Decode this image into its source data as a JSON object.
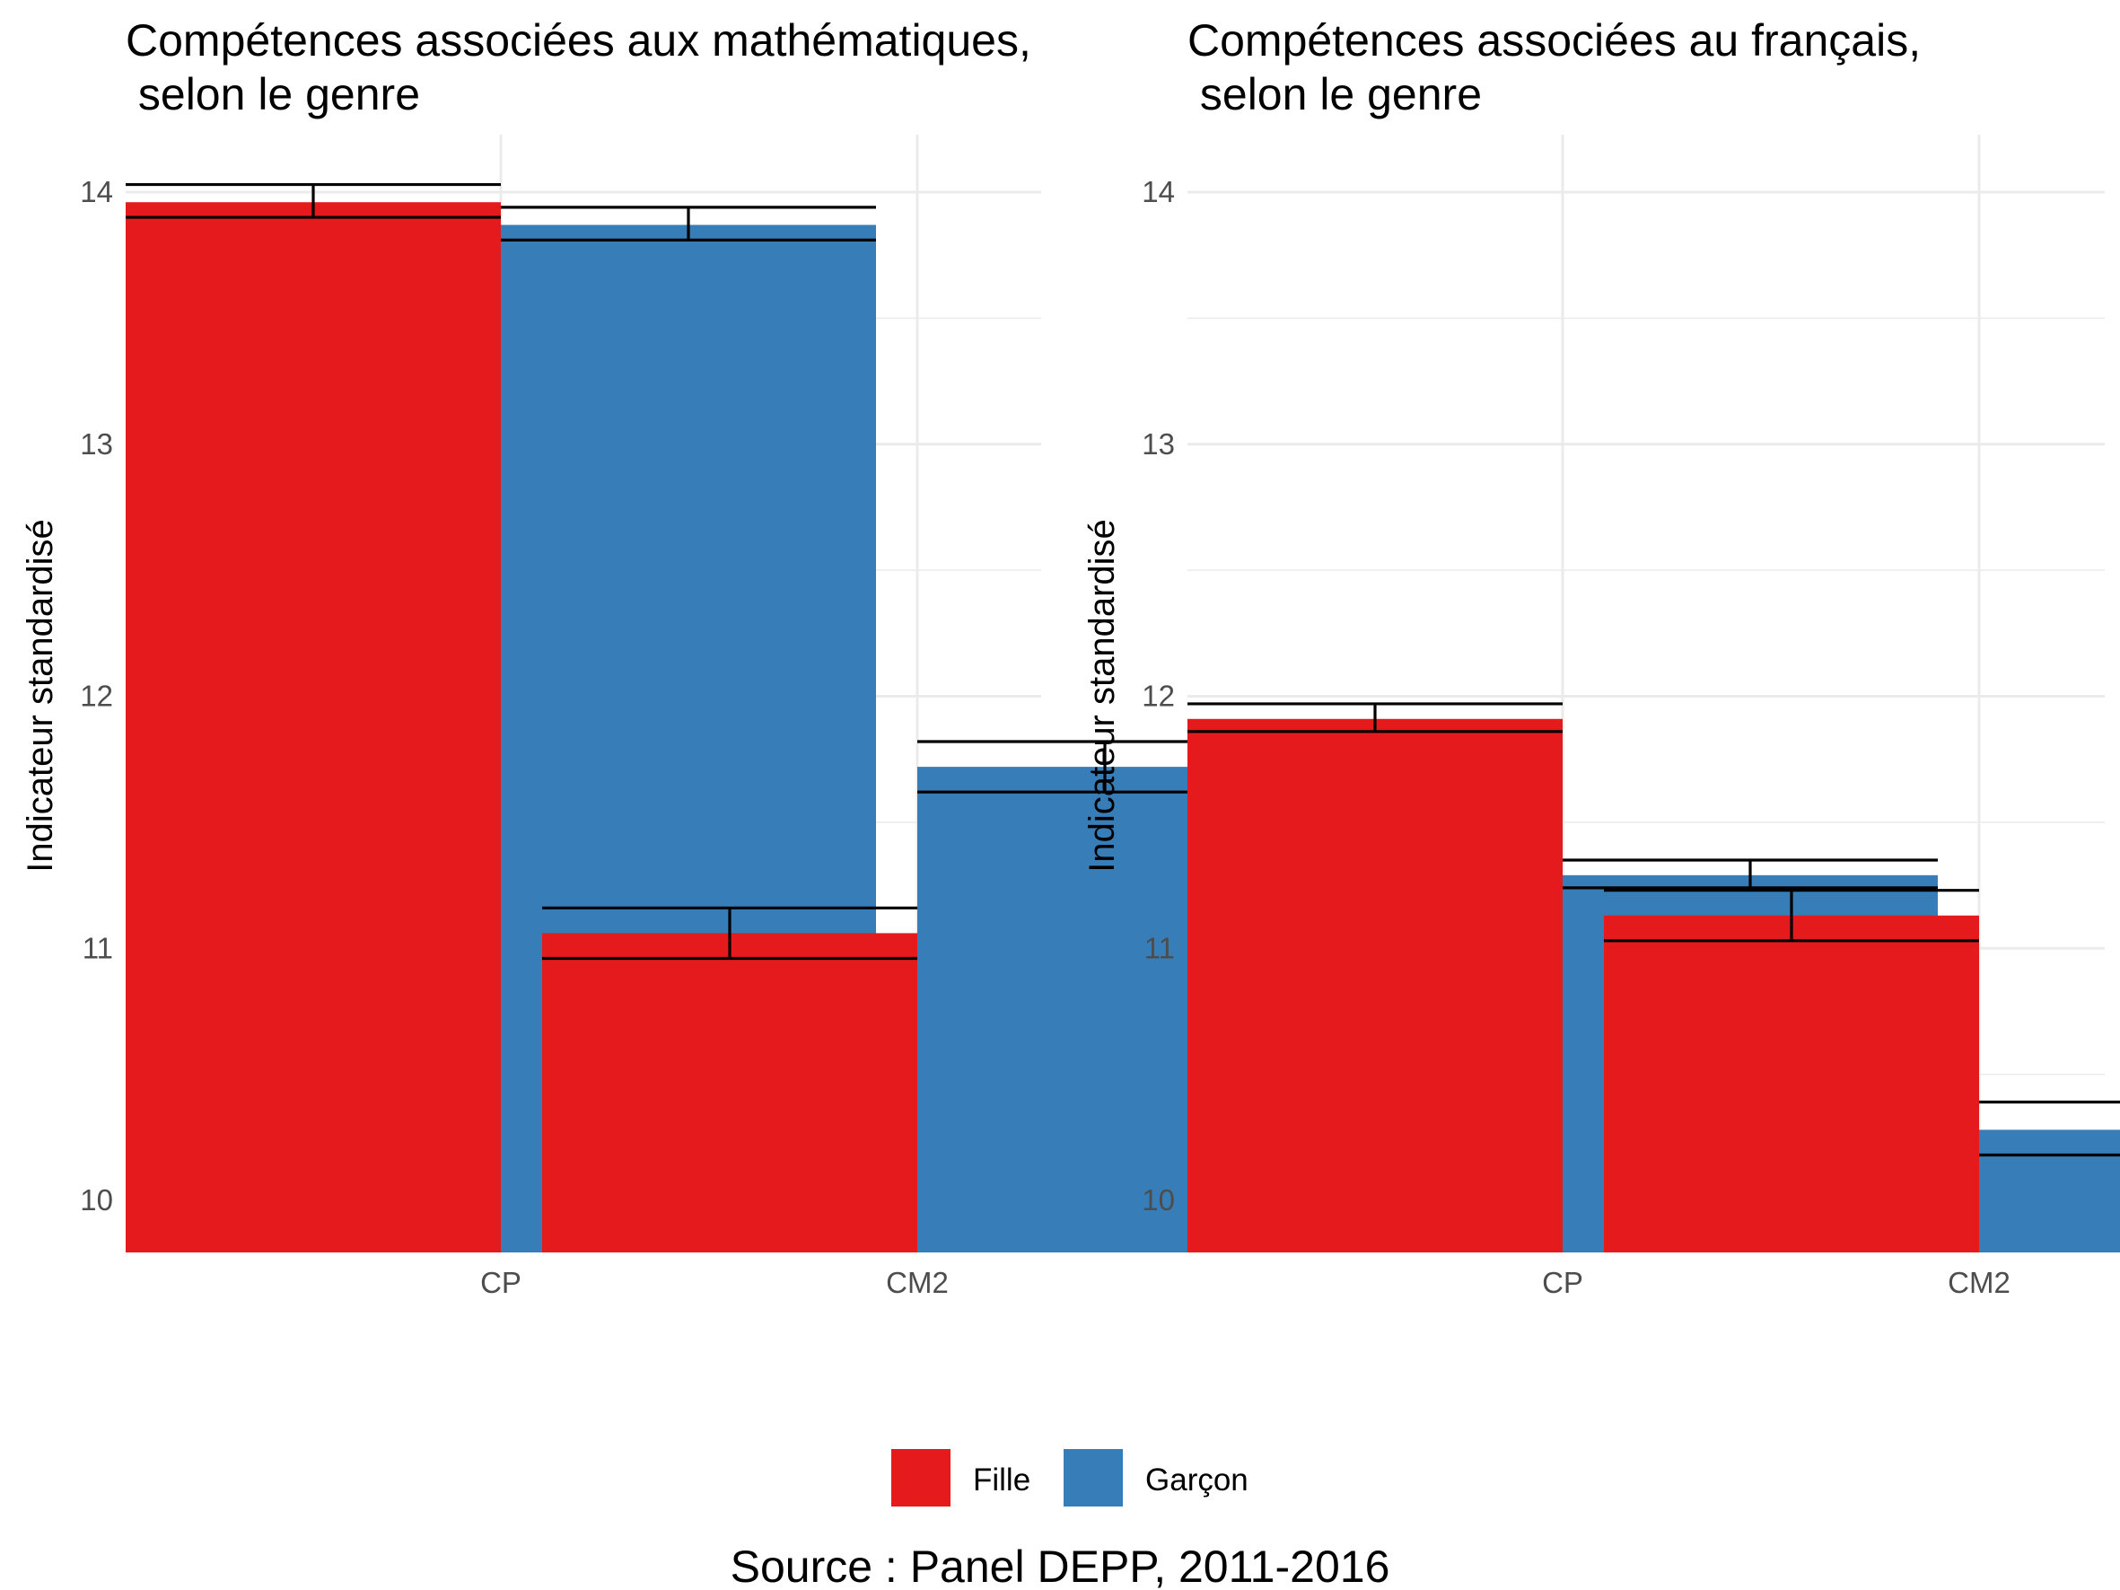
{
  "caption": "Source : Panel DEPP, 2011-2016",
  "legend": [
    {
      "label": "Fille",
      "color": "#E41A1C"
    },
    {
      "label": "Garçon",
      "color": "#377EB8"
    }
  ],
  "chart_data": [
    {
      "type": "bar",
      "title_line1": "Compétences associées aux mathématiques,",
      "title_line2": " selon le genre",
      "ylabel": "Indicateur standardisé",
      "xlabel": "",
      "categories": [
        "CP",
        "CM2"
      ],
      "ylim": [
        9.8,
        14.2
      ],
      "yticks": [
        "10",
        "11",
        "12",
        "13",
        "14"
      ],
      "grid": true,
      "series": [
        {
          "name": "Fille",
          "color": "#E41A1C",
          "values": [
            13.96,
            11.06
          ],
          "err_low": [
            13.9,
            10.96
          ],
          "err_high": [
            14.03,
            11.16
          ]
        },
        {
          "name": "Garçon",
          "color": "#377EB8",
          "values": [
            13.87,
            11.72
          ],
          "err_low": [
            13.81,
            11.62
          ],
          "err_high": [
            13.94,
            11.82
          ]
        }
      ]
    },
    {
      "type": "bar",
      "title_line1": "Compétences associées au français,",
      "title_line2": " selon le genre",
      "ylabel": "Indicateur standardisé",
      "xlabel": "",
      "categories": [
        "CP",
        "CM2"
      ],
      "ylim": [
        9.8,
        14.2
      ],
      "yticks": [
        "10",
        "11",
        "12",
        "13",
        "14"
      ],
      "grid": true,
      "series": [
        {
          "name": "Fille",
          "color": "#E41A1C",
          "values": [
            11.91,
            11.13
          ],
          "err_low": [
            11.86,
            11.03
          ],
          "err_high": [
            11.97,
            11.23
          ]
        },
        {
          "name": "Garçon",
          "color": "#377EB8",
          "values": [
            11.29,
            10.28
          ],
          "err_low": [
            11.24,
            10.18
          ],
          "err_high": [
            11.35,
            10.39
          ]
        }
      ]
    }
  ]
}
